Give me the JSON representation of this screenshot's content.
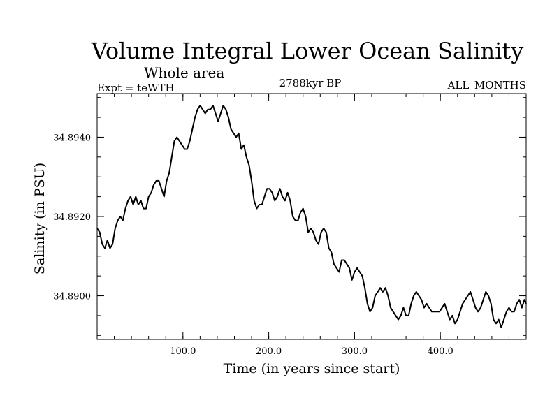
{
  "chart_data": {
    "type": "line",
    "title": "Volume Integral Lower Ocean Salinity",
    "subtitle": "Whole area",
    "header_left": "Expt = teWTH",
    "header_center": "2788kyr BP",
    "header_right": "ALL_MONTHS",
    "xlabel": "Time (in years since start)",
    "ylabel": "Salinity (in PSU)",
    "xlim": [
      0,
      500
    ],
    "ylim": [
      34.8889,
      34.8951
    ],
    "xticks": [
      {
        "value": 100,
        "label": "100.0"
      },
      {
        "value": 200,
        "label": "200.0"
      },
      {
        "value": 300,
        "label": "300.0"
      },
      {
        "value": 400,
        "label": "400.0"
      }
    ],
    "x_minor_step": 20,
    "yticks": [
      {
        "value": 34.89,
        "label": "34.8900"
      },
      {
        "value": 34.892,
        "label": "34.8920"
      },
      {
        "value": 34.894,
        "label": "34.8940"
      }
    ],
    "y_minor_step": 0.0005,
    "grid": false,
    "series": [
      {
        "name": "Salinity",
        "color": "#000000",
        "x": [
          0,
          3,
          6,
          9,
          12,
          15,
          18,
          21,
          24,
          27,
          30,
          33,
          36,
          39,
          42,
          45,
          48,
          51,
          54,
          57,
          60,
          63,
          66,
          69,
          72,
          75,
          78,
          81,
          84,
          87,
          90,
          93,
          96,
          99,
          102,
          105,
          108,
          111,
          114,
          117,
          120,
          123,
          126,
          129,
          132,
          135,
          138,
          141,
          144,
          147,
          150,
          153,
          156,
          159,
          162,
          165,
          168,
          171,
          174,
          177,
          180,
          183,
          186,
          189,
          192,
          195,
          198,
          201,
          204,
          207,
          210,
          213,
          216,
          219,
          222,
          225,
          228,
          231,
          234,
          237,
          240,
          243,
          246,
          249,
          252,
          255,
          258,
          261,
          264,
          267,
          270,
          273,
          276,
          279,
          282,
          285,
          288,
          291,
          294,
          297,
          300,
          303,
          306,
          309,
          312,
          315,
          318,
          321,
          324,
          327,
          330,
          333,
          336,
          339,
          342,
          345,
          348,
          351,
          354,
          357,
          360,
          363,
          366,
          369,
          372,
          375,
          378,
          381,
          384,
          387,
          390,
          393,
          396,
          399,
          402,
          405,
          408,
          411,
          414,
          417,
          420,
          423,
          426,
          429,
          432,
          435,
          438,
          441,
          444,
          447,
          450,
          453,
          456,
          459,
          462,
          465,
          468,
          471,
          474,
          477,
          480,
          483,
          486,
          489,
          492,
          495,
          498,
          500
        ],
        "y": [
          34.8917,
          34.8916,
          34.8913,
          34.8912,
          34.8914,
          34.8912,
          34.8913,
          34.8917,
          34.8919,
          34.892,
          34.8919,
          34.8922,
          34.8924,
          34.8925,
          34.8923,
          34.8925,
          34.8923,
          34.8924,
          34.8922,
          34.8922,
          34.8925,
          34.8926,
          34.8928,
          34.8929,
          34.8929,
          34.8927,
          34.8925,
          34.8929,
          34.8931,
          34.8935,
          34.8939,
          34.894,
          34.8939,
          34.8938,
          34.8937,
          34.8937,
          34.8939,
          34.8942,
          34.8945,
          34.8947,
          34.8948,
          34.8947,
          34.8946,
          34.8947,
          34.8947,
          34.8948,
          34.8946,
          34.8944,
          34.8946,
          34.8948,
          34.8947,
          34.8945,
          34.8942,
          34.8941,
          34.894,
          34.8941,
          34.8937,
          34.8938,
          34.8935,
          34.8933,
          34.8929,
          34.8924,
          34.8922,
          34.8923,
          34.8923,
          34.8925,
          34.8927,
          34.8927,
          34.8926,
          34.8924,
          34.8925,
          34.8927,
          34.8925,
          34.8924,
          34.8926,
          34.8924,
          34.892,
          34.8919,
          34.8919,
          34.8921,
          34.8922,
          34.892,
          34.8916,
          34.8917,
          34.8916,
          34.8914,
          34.8913,
          34.8916,
          34.8917,
          34.8916,
          34.8912,
          34.8911,
          34.8908,
          34.8907,
          34.8906,
          34.8909,
          34.8909,
          34.8908,
          34.8907,
          34.8904,
          34.8906,
          34.8907,
          34.8906,
          34.8905,
          34.8902,
          34.8898,
          34.8896,
          34.8897,
          34.89,
          34.8901,
          34.8902,
          34.8901,
          34.8902,
          34.89,
          34.8897,
          34.8896,
          34.8895,
          34.8894,
          34.8895,
          34.8897,
          34.8895,
          34.8895,
          34.8898,
          34.89,
          34.8901,
          34.89,
          34.8899,
          34.8897,
          34.8898,
          34.8897,
          34.8896,
          34.8896,
          34.8896,
          34.8896,
          34.8897,
          34.8898,
          34.8896,
          34.8894,
          34.8895,
          34.8893,
          34.8894,
          34.8896,
          34.8898,
          34.8899,
          34.89,
          34.8901,
          34.8899,
          34.8897,
          34.8896,
          34.8897,
          34.8899,
          34.8901,
          34.89,
          34.8898,
          34.8894,
          34.8893,
          34.8894,
          34.8892,
          34.8894,
          34.8896,
          34.8897,
          34.8896,
          34.8896,
          34.8898,
          34.8899,
          34.8897,
          34.8899,
          34.8898
        ]
      }
    ]
  }
}
